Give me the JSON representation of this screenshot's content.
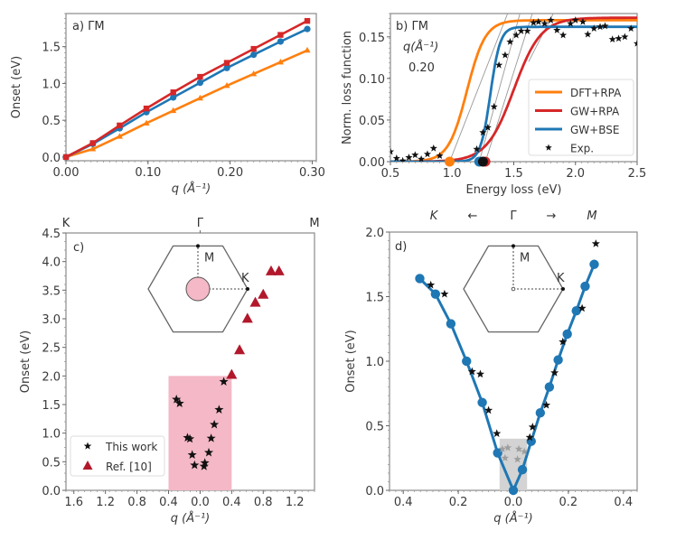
{
  "chart_data": [
    {
      "id": "a",
      "type": "line",
      "panel_label": "a) ΓM",
      "xlabel": "q (Å⁻¹)",
      "ylabel": "Onset (eV)",
      "xlim": [
        0.0,
        0.305
      ],
      "ylim": [
        -0.05,
        1.95
      ],
      "xticks": [
        0.0,
        0.1,
        0.2,
        0.3
      ],
      "xtick_labels": [
        "0.00",
        "0.10",
        "0.20",
        "0.30"
      ],
      "yticks": [
        0.0,
        0.5,
        1.0,
        1.5
      ],
      "ytick_labels": [
        "0.0",
        "0.5",
        "1.0",
        "1.5"
      ],
      "x": [
        0.0,
        0.0327,
        0.0654,
        0.098,
        0.1307,
        0.1634,
        0.196,
        0.2287,
        0.2614,
        0.294
      ],
      "series": [
        {
          "name": "GW+RPA",
          "color": "#d62728",
          "marker": "square",
          "values": [
            0.0,
            0.19,
            0.43,
            0.66,
            0.88,
            1.09,
            1.28,
            1.47,
            1.66,
            1.85
          ]
        },
        {
          "name": "GW+BSE",
          "color": "#1f77b4",
          "marker": "circle",
          "values": [
            0.0,
            0.18,
            0.39,
            0.61,
            0.81,
            1.01,
            1.21,
            1.39,
            1.57,
            1.74
          ]
        },
        {
          "name": "DFT+RPA",
          "color": "#ff7f0e",
          "marker": "triangle",
          "values": [
            0.0,
            0.11,
            0.28,
            0.46,
            0.63,
            0.8,
            0.97,
            1.13,
            1.29,
            1.45
          ]
        }
      ]
    },
    {
      "id": "b",
      "type": "line",
      "panel_label": "b) ΓM",
      "annotation_lines": [
        "q(Å⁻¹)",
        "0.20"
      ],
      "xlabel": "Energy loss (eV)",
      "ylabel": "Norm. loss function",
      "xlim": [
        0.5,
        2.5
      ],
      "ylim": [
        0.0,
        0.178
      ],
      "xticks": [
        0.5,
        1.0,
        1.5,
        2.0,
        2.5
      ],
      "xtick_labels": [
        "0.5",
        "1.0",
        "1.5",
        "2.0",
        "2.5"
      ],
      "yticks": [
        0.0,
        0.05,
        0.1,
        0.15
      ],
      "ytick_labels": [
        "0.00",
        "0.05",
        "0.10",
        "0.15"
      ],
      "legend": {
        "placement": "center-right",
        "entries": [
          "DFT+RPA",
          "GW+RPA",
          "GW+BSE",
          "Exp."
        ]
      },
      "series": [
        {
          "name": "DFT+RPA",
          "color": "#ff7f0e",
          "model": "sigmoid",
          "center": 1.12,
          "width": 0.075,
          "plateau": 0.17,
          "onset": 0.98
        },
        {
          "name": "GW+RPA",
          "color": "#d62728",
          "model": "sigmoid",
          "center": 1.5,
          "width": 0.11,
          "plateau": 0.173,
          "onset": 1.27
        },
        {
          "name": "GW+BSE",
          "color": "#1f77b4",
          "model": "sigmoid",
          "center": 1.31,
          "width": 0.04,
          "plateau": 0.162,
          "onset": 1.22
        },
        {
          "name": "Exp.",
          "color": "#111111",
          "marker": "star",
          "onset": 1.25,
          "x": [
            0.5,
            0.55,
            0.6,
            0.65,
            0.7,
            0.75,
            0.8,
            0.85,
            0.9,
            1.2,
            1.25,
            1.29,
            1.34,
            1.38,
            1.43,
            1.47,
            1.52,
            1.56,
            1.61,
            1.66,
            1.7,
            1.75,
            1.8,
            1.85,
            1.9,
            1.96,
            2.0,
            2.06,
            2.1,
            2.15,
            2.2,
            2.24,
            2.3,
            2.35,
            2.4,
            2.45,
            2.5
          ],
          "y": [
            0.012,
            0.004,
            0.001,
            0.005,
            0.008,
            0.003,
            0.009,
            0.016,
            0.007,
            0.015,
            0.035,
            0.041,
            0.066,
            0.116,
            0.128,
            0.144,
            0.152,
            0.157,
            0.157,
            0.167,
            0.168,
            0.166,
            0.17,
            0.158,
            0.152,
            0.166,
            0.17,
            0.168,
            0.153,
            0.16,
            0.162,
            0.163,
            0.147,
            0.148,
            0.15,
            0.16,
            0.142
          ]
        }
      ],
      "guide_lines": [
        [
          0.98,
          0.0,
          1.45,
          0.178
        ],
        [
          1.22,
          0.0,
          1.55,
          0.178
        ],
        [
          1.27,
          0.0,
          1.65,
          0.178
        ],
        [
          1.62,
          0.12,
          1.82,
          0.178
        ]
      ]
    },
    {
      "id": "c",
      "type": "scatter",
      "panel_label": "c)",
      "top_labels": [
        "K",
        "Γ",
        "M"
      ],
      "xlabel": "q (Å⁻¹)",
      "ylabel": "Onset (eV)",
      "xlim": [
        -1.7,
        1.45
      ],
      "ylim": [
        0.0,
        4.5
      ],
      "xticks": [
        -1.6,
        -1.2,
        -0.8,
        -0.4,
        0.0,
        0.4,
        0.8,
        1.2
      ],
      "xtick_labels": [
        "1.6",
        "1.2",
        "0.8",
        "0.4",
        "0.0",
        "0.4",
        "0.8",
        "1.2"
      ],
      "yticks": [
        0.0,
        0.5,
        1.0,
        1.5,
        2.0,
        2.5,
        3.0,
        3.5,
        4.0,
        4.5
      ],
      "ytick_labels": [
        "0.0",
        "0.5",
        "1.0",
        "1.5",
        "2.0",
        "2.5",
        "3.0",
        "3.5",
        "4.0",
        "4.5"
      ],
      "shaded_region": {
        "x": [
          -0.4,
          0.4
        ],
        "y": [
          0.0,
          2.0
        ],
        "color": "#f4b8c6"
      },
      "inset": {
        "labels": [
          "M",
          "K"
        ],
        "center_disk_color": "#f4b8c6"
      },
      "legend": {
        "placement": "lower-left",
        "entries": [
          "This work",
          "Ref. [10]"
        ]
      },
      "series": [
        {
          "name": "This work",
          "color": "#111111",
          "marker": "star",
          "x": [
            -0.3,
            -0.26,
            -0.16,
            -0.13,
            -0.1,
            -0.07,
            0.05,
            0.06,
            0.11,
            0.14,
            0.18,
            0.24,
            0.3
          ],
          "y": [
            1.59,
            1.52,
            0.92,
            0.9,
            0.62,
            0.44,
            0.42,
            0.48,
            0.66,
            0.91,
            1.15,
            1.41,
            1.9
          ]
        },
        {
          "name": "Ref. [10]",
          "color": "#b2182b",
          "marker": "triangle",
          "x": [
            0.4,
            0.5,
            0.6,
            0.7,
            0.8,
            0.9,
            1.0
          ],
          "y": [
            2.02,
            2.45,
            3.0,
            3.28,
            3.42,
            3.83,
            3.83
          ]
        }
      ]
    },
    {
      "id": "d",
      "type": "line",
      "panel_label": "d)",
      "top_labels": [
        "K",
        "←",
        "Γ",
        "→",
        "M"
      ],
      "xlabel": "q (Å⁻¹)",
      "ylabel": "Onset (eV)",
      "xlim": [
        -0.45,
        0.45
      ],
      "ylim": [
        0.0,
        2.0
      ],
      "xticks": [
        -0.4,
        -0.2,
        0.0,
        0.2,
        0.4
      ],
      "xtick_labels": [
        "0.4",
        "0.2",
        "0.0",
        "0.2",
        "0.4"
      ],
      "yticks": [
        0.0,
        0.5,
        1.0,
        1.5,
        2.0
      ],
      "ytick_labels": [
        "0.0",
        "0.5",
        "1.0",
        "1.5",
        "2.0"
      ],
      "shaded_region": {
        "x": [
          -0.05,
          0.05
        ],
        "y": [
          0.0,
          0.4
        ],
        "color": "#d3d3d3"
      },
      "inset": {
        "labels": [
          "M",
          "K"
        ]
      },
      "series": [
        {
          "name": "GW+BSE",
          "color": "#1f77b4",
          "marker": "circle",
          "x": [
            -0.34,
            -0.283,
            -0.227,
            -0.17,
            -0.113,
            -0.057,
            0.0,
            0.033,
            0.065,
            0.098,
            0.131,
            0.163,
            0.196,
            0.229,
            0.261,
            0.294
          ],
          "y": [
            1.64,
            1.52,
            1.29,
            1.0,
            0.68,
            0.29,
            0.0,
            0.16,
            0.38,
            0.6,
            0.8,
            1.01,
            1.21,
            1.39,
            1.58,
            1.75
          ]
        },
        {
          "name": "Exp.",
          "color": "#111111",
          "marker": "star",
          "x": [
            -0.3,
            -0.25,
            -0.15,
            -0.12,
            -0.09,
            -0.06,
            0.06,
            0.07,
            0.12,
            0.15,
            0.18,
            0.25,
            0.3
          ],
          "y": [
            1.59,
            1.52,
            0.92,
            0.9,
            0.62,
            0.44,
            0.41,
            0.49,
            0.66,
            0.91,
            1.15,
            1.41,
            1.91
          ]
        },
        {
          "name": "Exp. (shaded)",
          "color": "#9e9e9e",
          "marker": "star",
          "x": [
            -0.04,
            -0.02,
            0.02,
            0.04,
            -0.03,
            0.015
          ],
          "y": [
            0.32,
            0.33,
            0.32,
            0.3,
            0.25,
            0.24
          ]
        }
      ]
    }
  ]
}
